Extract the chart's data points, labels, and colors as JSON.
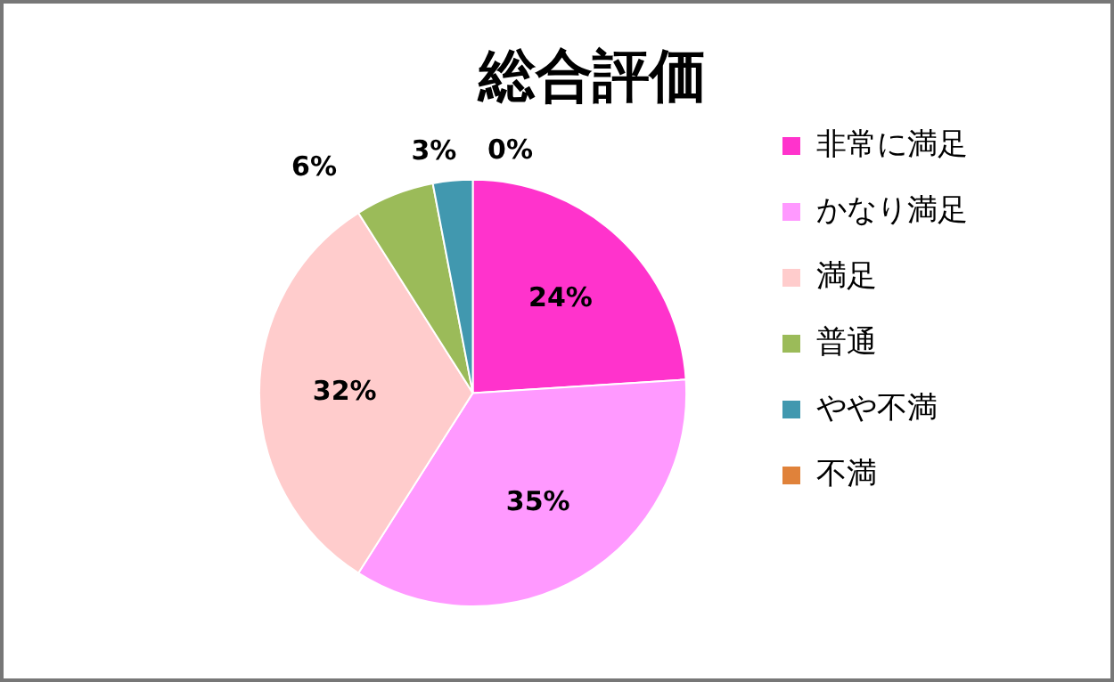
{
  "chart_data": {
    "type": "pie",
    "title": "総合評価",
    "categories": [
      "非常に満足",
      "かなり満足",
      "満足",
      "普通",
      "やや不満",
      "不満"
    ],
    "values": [
      24,
      35,
      32,
      6,
      3,
      0
    ],
    "value_labels": [
      "24%",
      "35%",
      "32%",
      "6%",
      "3%",
      "0%"
    ],
    "colors": [
      "#ff33cc",
      "#ff99ff",
      "#ffcccc",
      "#9bbb59",
      "#4198af",
      "#e0823a"
    ],
    "legend": "right"
  }
}
